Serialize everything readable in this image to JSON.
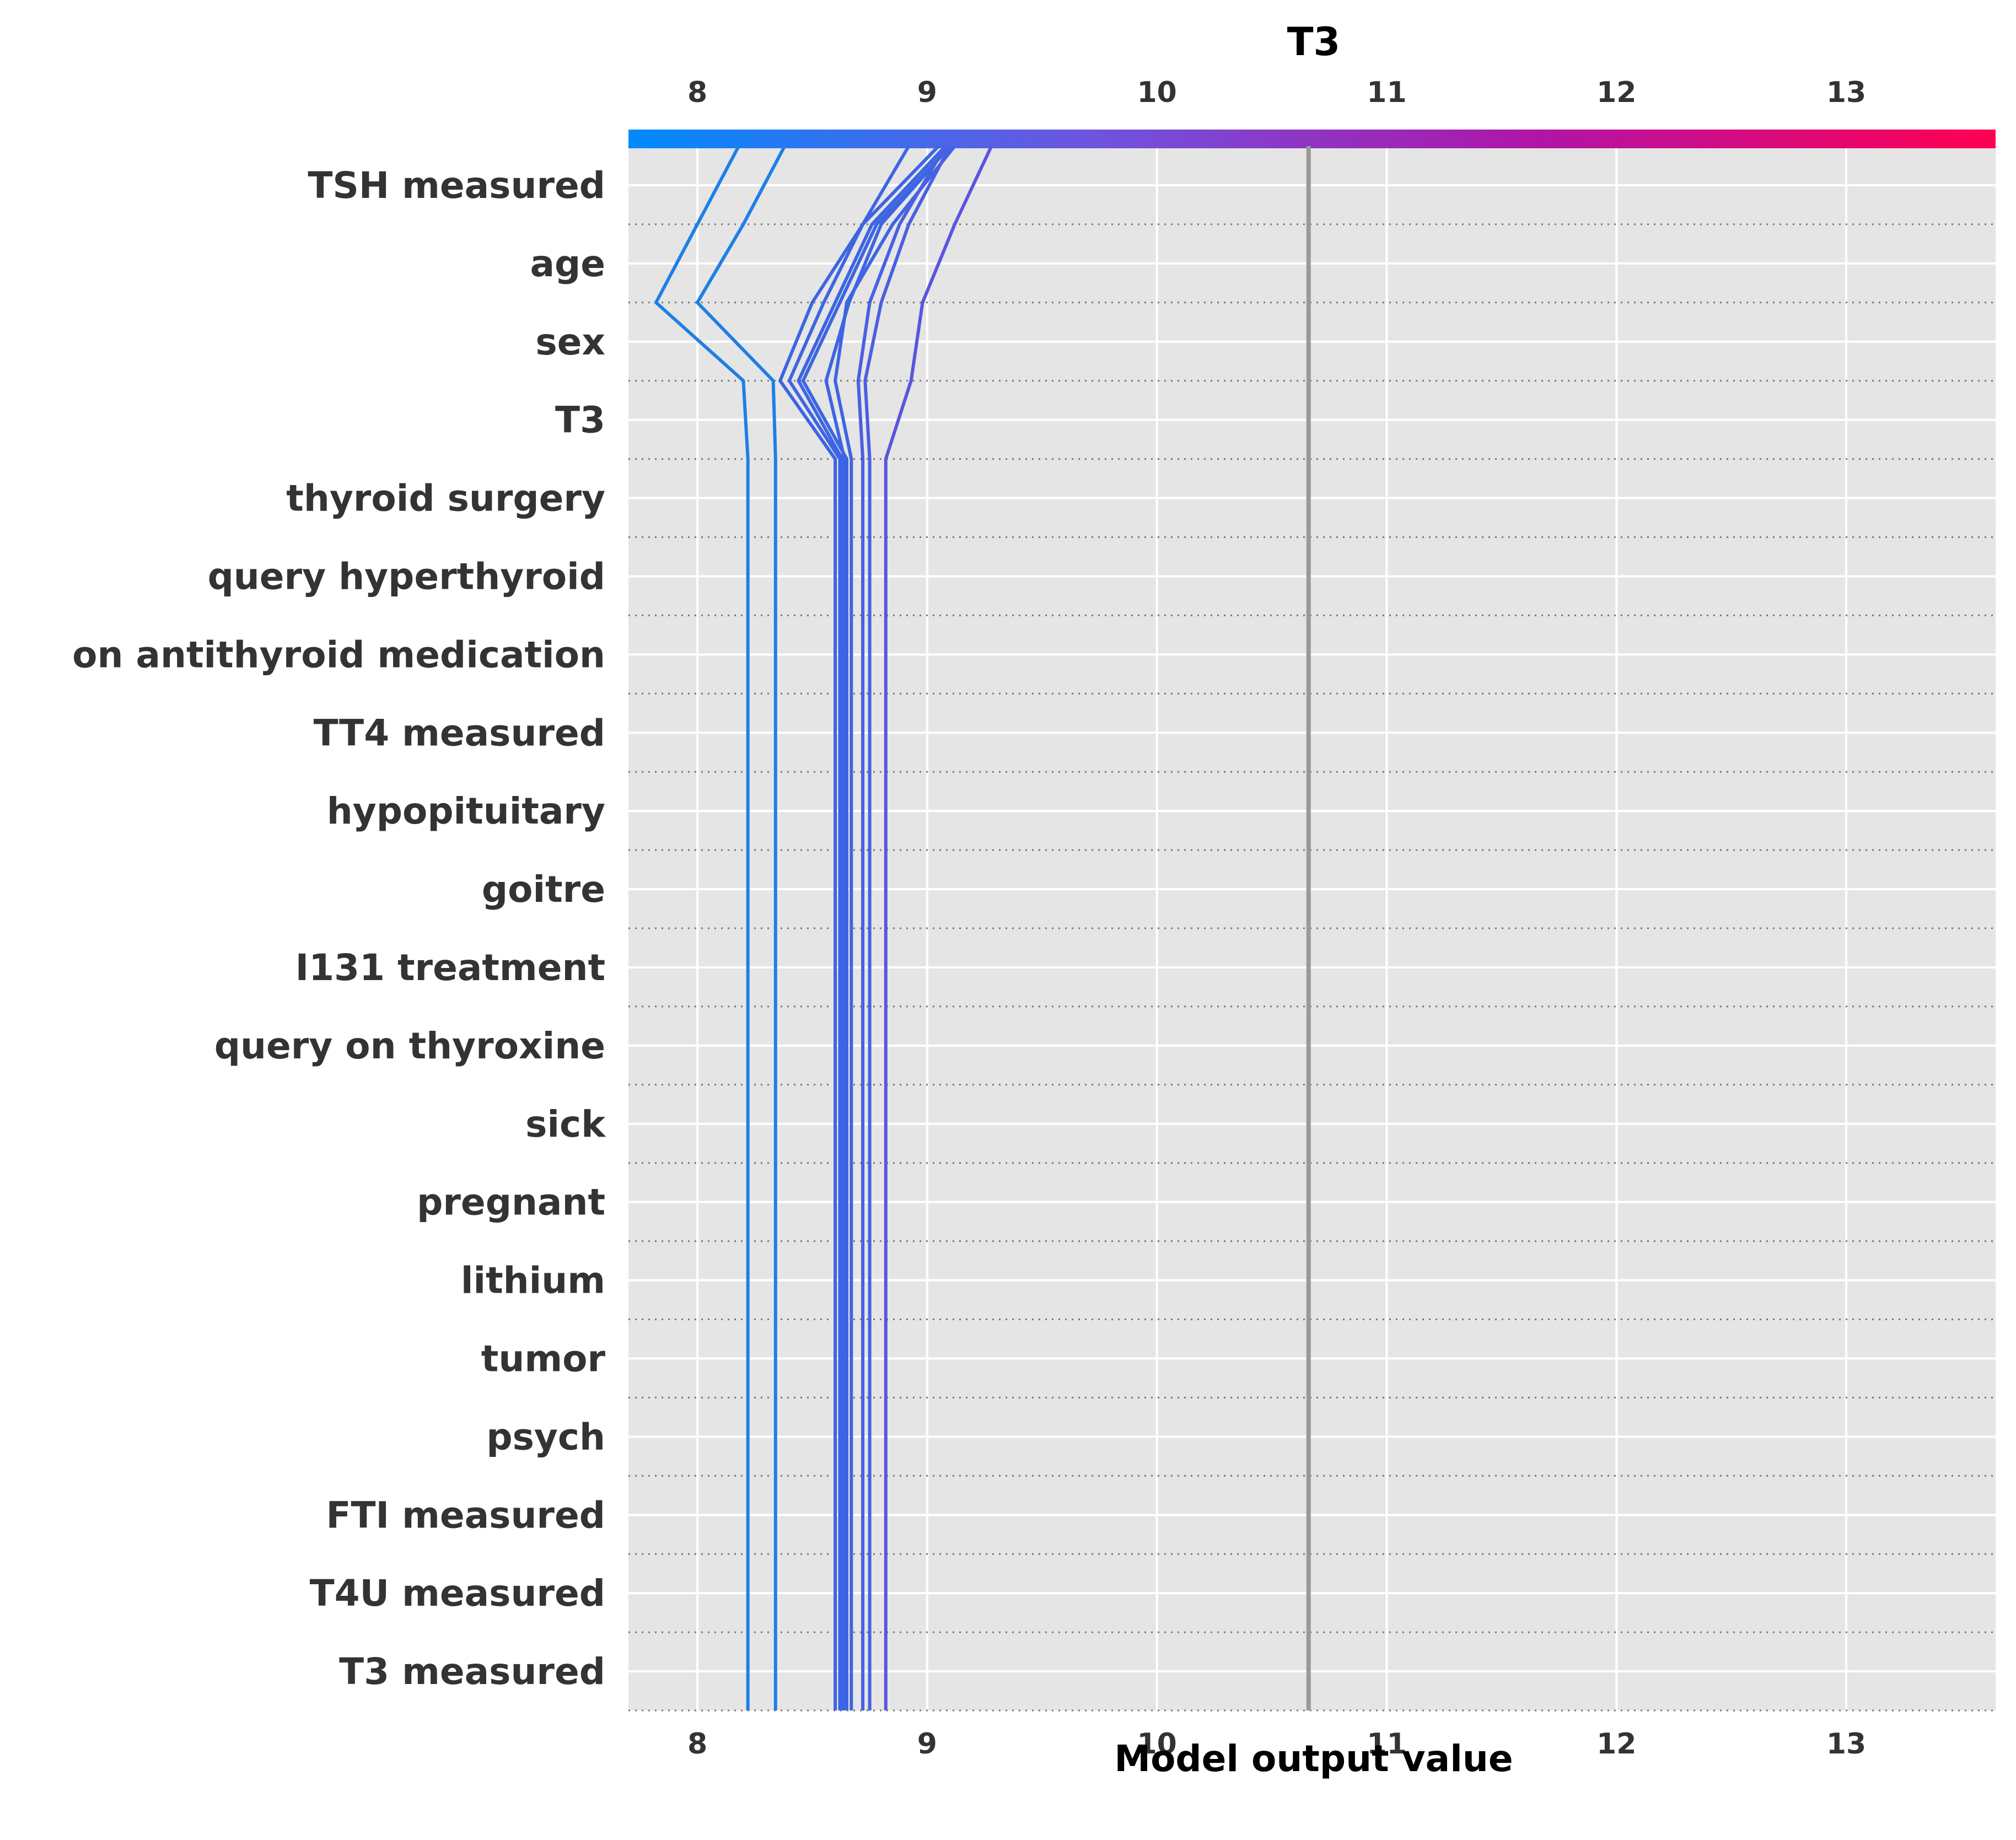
{
  "chart_data": {
    "type": "line",
    "subtype": "shap-decision-plot",
    "title": "T3",
    "xlabel": "Model output value",
    "ylabel": "",
    "xlim": [
      7.7,
      13.65
    ],
    "xticks": [
      8,
      9,
      10,
      11,
      12,
      13
    ],
    "base_value": 10.66,
    "colorbar": {
      "position": "top",
      "colors": [
        "#008bfb",
        "#6d55e0",
        "#b114a6",
        "#ff0052"
      ]
    },
    "background_color": "#e5e5e5",
    "grid": true,
    "features": [
      "TSH measured",
      "age",
      "sex",
      "T3",
      "thyroid surgery",
      "query hyperthyroid",
      "on antithyroid medication",
      "TT4 measured",
      "hypopituitary",
      "goitre",
      "I131 treatment",
      "query on thyroxine",
      "sick",
      "pregnant",
      "lithium",
      "tumor",
      "psych",
      "FTI measured",
      "T4U measured",
      "T3 measured"
    ],
    "series": [
      {
        "color": "#1e7fe6",
        "values": [
          8.18,
          8.0,
          7.82,
          8.2,
          8.22,
          8.22,
          8.22,
          8.22,
          8.22,
          8.22,
          8.22,
          8.22,
          8.22,
          8.22,
          8.22,
          8.22,
          8.22,
          8.22,
          8.22,
          8.22,
          8.22
        ]
      },
      {
        "color": "#1e7fe6",
        "values": [
          8.38,
          8.2,
          8.0,
          8.33,
          8.34,
          8.34,
          8.34,
          8.34,
          8.34,
          8.34,
          8.34,
          8.34,
          8.34,
          8.34,
          8.34,
          8.34,
          8.34,
          8.34,
          8.34,
          8.34,
          8.34
        ]
      },
      {
        "color": "#3d65e3",
        "values": [
          8.92,
          8.72,
          8.5,
          8.36,
          8.6,
          8.6,
          8.6,
          8.6,
          8.6,
          8.6,
          8.6,
          8.6,
          8.6,
          8.6,
          8.6,
          8.6,
          8.6,
          8.6,
          8.6,
          8.6,
          8.6
        ]
      },
      {
        "color": "#3d65e3",
        "values": [
          9.05,
          8.72,
          8.55,
          8.4,
          8.62,
          8.62,
          8.62,
          8.62,
          8.62,
          8.62,
          8.62,
          8.62,
          8.62,
          8.62,
          8.62,
          8.62,
          8.62,
          8.62,
          8.62,
          8.62,
          8.62
        ]
      },
      {
        "color": "#3d65e3",
        "values": [
          9.08,
          8.76,
          8.6,
          8.44,
          8.63,
          8.63,
          8.63,
          8.63,
          8.63,
          8.63,
          8.63,
          8.63,
          8.63,
          8.63,
          8.63,
          8.63,
          8.63,
          8.63,
          8.63,
          8.63,
          8.63
        ]
      },
      {
        "color": "#3d65e3",
        "values": [
          9.1,
          8.78,
          8.62,
          8.46,
          8.65,
          8.65,
          8.65,
          8.65,
          8.65,
          8.65,
          8.65,
          8.65,
          8.65,
          8.65,
          8.65,
          8.65,
          8.65,
          8.65,
          8.65,
          8.65,
          8.65
        ]
      },
      {
        "color": "#3d65e3",
        "values": [
          9.1,
          8.8,
          8.66,
          8.56,
          8.64,
          8.64,
          8.64,
          8.64,
          8.64,
          8.64,
          8.64,
          8.64,
          8.64,
          8.64,
          8.64,
          8.64,
          8.64,
          8.64,
          8.64,
          8.64,
          8.64
        ]
      },
      {
        "color": "#3d65e3",
        "values": [
          9.12,
          8.85,
          8.65,
          8.6,
          8.67,
          8.67,
          8.67,
          8.67,
          8.67,
          8.67,
          8.67,
          8.67,
          8.67,
          8.67,
          8.67,
          8.67,
          8.67,
          8.67,
          8.67,
          8.67,
          8.67
        ]
      },
      {
        "color": "#4a5fe2",
        "values": [
          9.08,
          8.88,
          8.75,
          8.7,
          8.72,
          8.72,
          8.72,
          8.72,
          8.72,
          8.72,
          8.72,
          8.72,
          8.72,
          8.72,
          8.72,
          8.72,
          8.72,
          8.72,
          8.72,
          8.72,
          8.72
        ]
      },
      {
        "color": "#4a5fe2",
        "values": [
          9.1,
          8.92,
          8.8,
          8.73,
          8.75,
          8.75,
          8.75,
          8.75,
          8.75,
          8.75,
          8.75,
          8.75,
          8.75,
          8.75,
          8.75,
          8.75,
          8.75,
          8.75,
          8.75,
          8.75,
          8.75
        ]
      },
      {
        "color": "#5a55df",
        "values": [
          9.28,
          9.12,
          8.98,
          8.93,
          8.82,
          8.82,
          8.82,
          8.82,
          8.82,
          8.82,
          8.82,
          8.82,
          8.82,
          8.82,
          8.82,
          8.82,
          8.82,
          8.82,
          8.82,
          8.82,
          8.82
        ]
      }
    ]
  }
}
